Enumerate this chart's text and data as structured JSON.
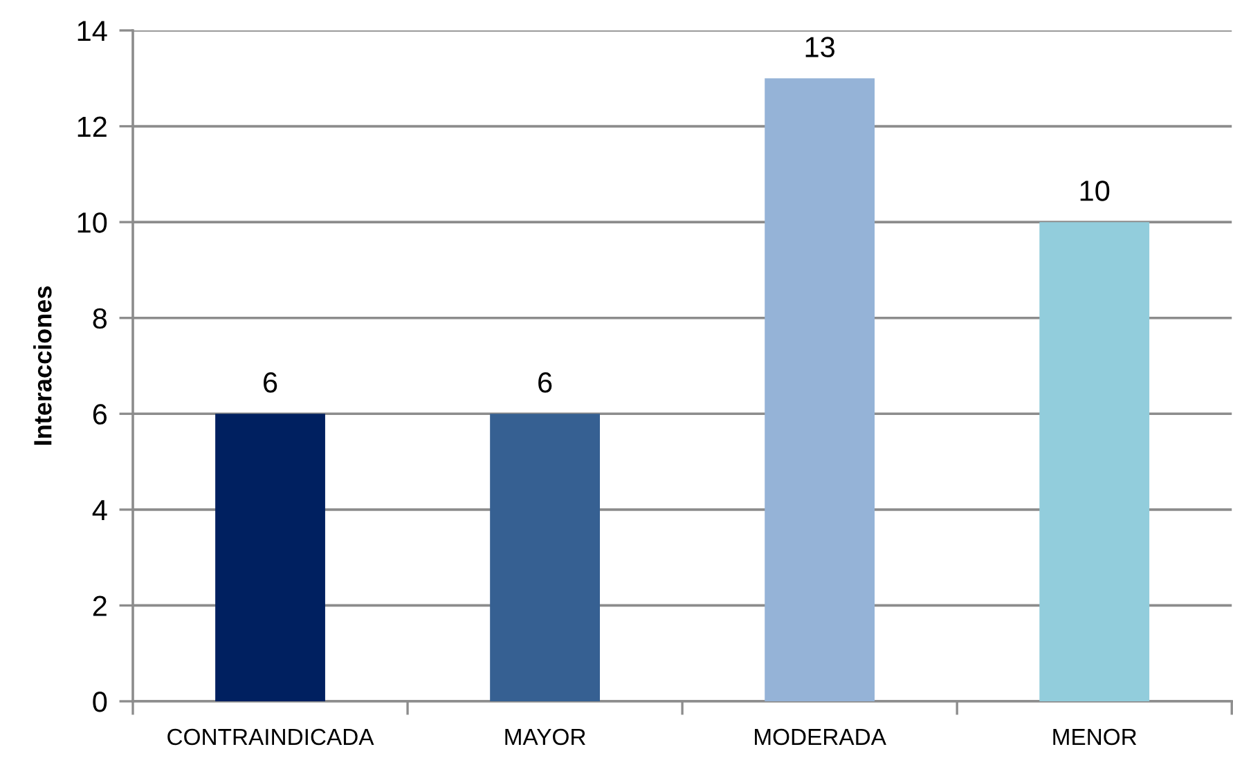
{
  "chart_data": {
    "type": "bar",
    "categories": [
      "CONTRAINDICADA",
      "MAYOR",
      "MODERADA",
      "MENOR"
    ],
    "values": [
      6,
      6,
      13,
      10
    ],
    "colors": [
      "#002060",
      "#366092",
      "#95b3d7",
      "#92cddc"
    ],
    "ylabel": "Interacciones",
    "ylim": [
      0,
      14
    ],
    "yticks": [
      0,
      2,
      4,
      6,
      8,
      10,
      12,
      14
    ],
    "grid": "y",
    "data_labels": true
  }
}
